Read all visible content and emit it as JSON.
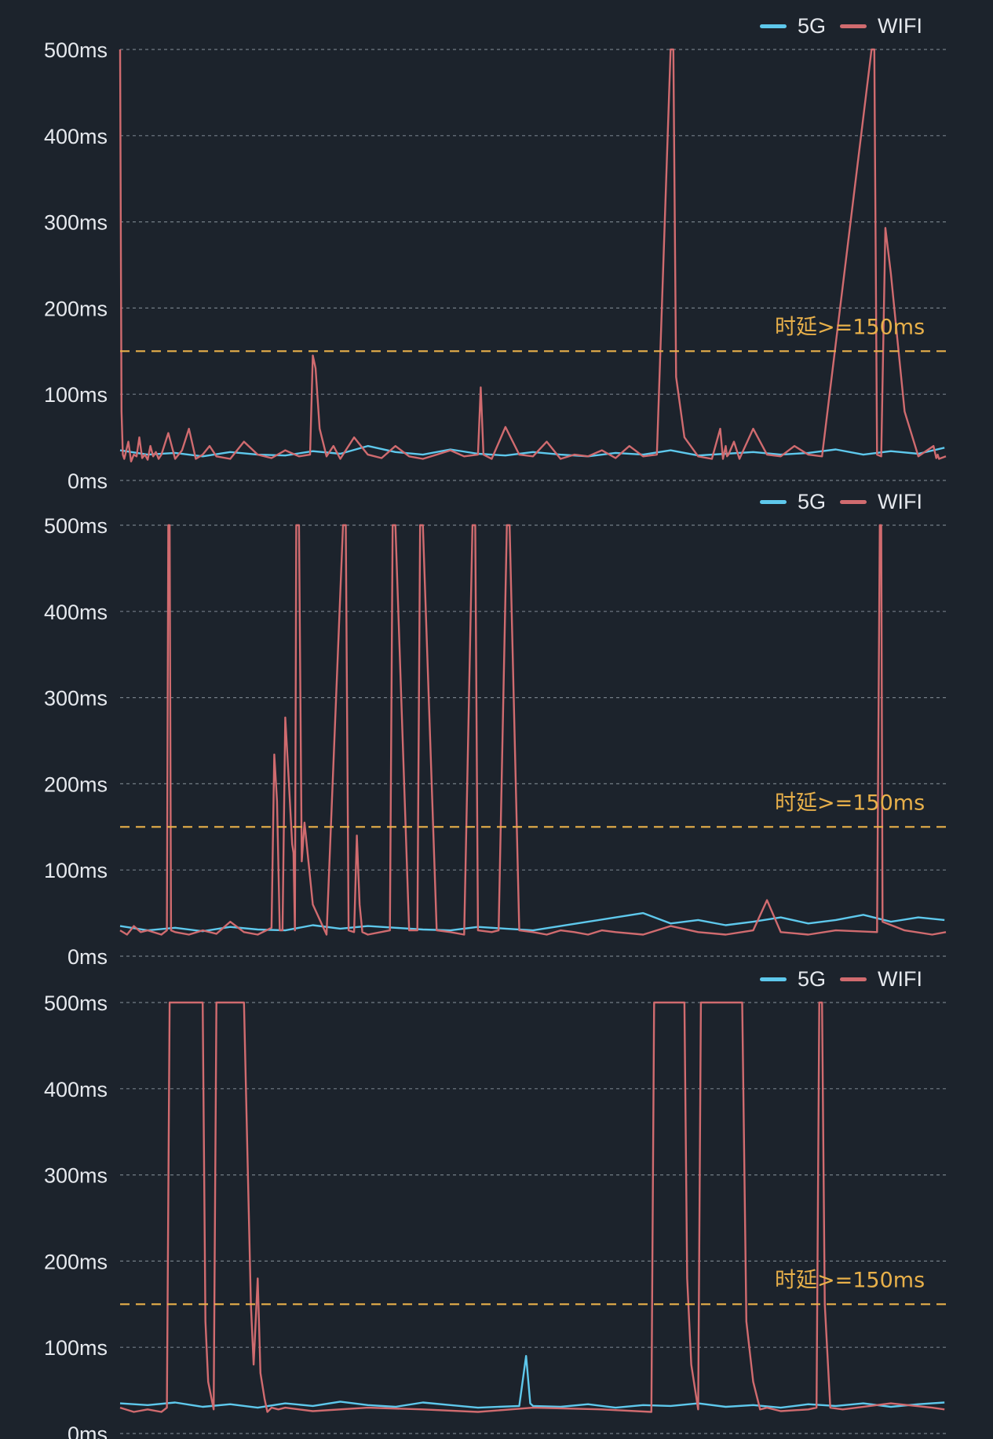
{
  "colors": {
    "background": "#1c232c",
    "series_5g": "#5ec8ec",
    "series_wifi": "#d06b6f",
    "threshold": "#e8b04a",
    "grid": "#8a939e",
    "text": "#e6e9ee"
  },
  "chart_data": [
    {
      "type": "line",
      "ylim": [
        0,
        500
      ],
      "yticks": [
        "0ms",
        "100ms",
        "200ms",
        "300ms",
        "400ms",
        "500ms"
      ],
      "grid": "horizontal dashed",
      "legend": "top-right",
      "threshold": {
        "value": 150,
        "label": "时延>=150ms"
      },
      "series": [
        {
          "name": "5G",
          "x": [
            0,
            20,
            40,
            60,
            80,
            100,
            120,
            140,
            160,
            180,
            200,
            220,
            240,
            260,
            280,
            300,
            320,
            340,
            360,
            380,
            400,
            420,
            440,
            460,
            480,
            500,
            520,
            540,
            560,
            580,
            599
          ],
          "values": [
            35,
            30,
            32,
            28,
            33,
            30,
            29,
            34,
            31,
            40,
            33,
            30,
            36,
            31,
            29,
            33,
            30,
            28,
            32,
            30,
            35,
            29,
            31,
            33,
            30,
            32,
            36,
            30,
            34,
            31,
            38
          ]
        },
        {
          "name": "WIFI",
          "x": [
            0,
            1,
            2,
            3,
            6,
            8,
            10,
            12,
            14,
            16,
            18,
            20,
            22,
            24,
            26,
            28,
            30,
            35,
            40,
            45,
            50,
            55,
            60,
            65,
            70,
            80,
            90,
            100,
            110,
            120,
            130,
            138,
            140,
            142,
            145,
            150,
            155,
            160,
            170,
            180,
            190,
            200,
            210,
            220,
            230,
            240,
            250,
            260,
            262,
            264,
            270,
            280,
            290,
            300,
            310,
            320,
            330,
            340,
            350,
            360,
            370,
            380,
            390,
            400,
            402,
            404,
            410,
            420,
            430,
            436,
            438,
            440,
            441,
            442,
            446,
            450,
            460,
            470,
            480,
            490,
            500,
            510,
            546,
            548,
            550,
            553,
            556,
            560,
            565,
            570,
            580,
            591,
            593,
            594,
            595,
            600
          ],
          "values": [
            500,
            80,
            30,
            25,
            45,
            22,
            30,
            28,
            50,
            26,
            30,
            24,
            40,
            28,
            33,
            25,
            30,
            55,
            25,
            35,
            60,
            25,
            30,
            40,
            28,
            25,
            45,
            30,
            26,
            35,
            28,
            30,
            145,
            130,
            60,
            28,
            40,
            25,
            50,
            30,
            26,
            40,
            28,
            25,
            30,
            35,
            28,
            30,
            108,
            30,
            25,
            62,
            30,
            28,
            45,
            25,
            30,
            28,
            35,
            26,
            40,
            28,
            30,
            500,
            500,
            120,
            50,
            28,
            25,
            60,
            25,
            40,
            28,
            30,
            45,
            25,
            60,
            30,
            28,
            40,
            30,
            28,
            500,
            500,
            30,
            28,
            293,
            240,
            160,
            80,
            28,
            40,
            26,
            30,
            25,
            28
          ]
        }
      ]
    },
    {
      "type": "line",
      "ylim": [
        0,
        500
      ],
      "yticks": [
        "0ms",
        "100ms",
        "200ms",
        "300ms",
        "400ms",
        "500ms"
      ],
      "grid": "horizontal dashed",
      "legend": "top-right",
      "threshold": {
        "value": 150,
        "label": "时延>=150ms"
      },
      "series": [
        {
          "name": "5G",
          "x": [
            0,
            20,
            40,
            60,
            80,
            100,
            120,
            140,
            160,
            180,
            200,
            220,
            240,
            260,
            280,
            300,
            320,
            340,
            360,
            380,
            400,
            420,
            440,
            460,
            480,
            500,
            520,
            540,
            560,
            580,
            599
          ],
          "values": [
            35,
            30,
            33,
            29,
            34,
            31,
            30,
            36,
            32,
            35,
            33,
            31,
            30,
            34,
            32,
            30,
            35,
            40,
            45,
            50,
            38,
            42,
            36,
            40,
            45,
            38,
            42,
            48,
            40,
            45,
            42
          ]
        },
        {
          "name": "WIFI",
          "x": [
            0,
            5,
            10,
            15,
            20,
            30,
            34,
            35,
            36,
            37,
            40,
            50,
            60,
            70,
            80,
            90,
            100,
            110,
            112,
            114,
            116,
            118,
            120,
            122,
            125,
            126,
            127,
            128,
            130,
            132,
            134,
            140,
            150,
            162,
            164,
            166,
            170,
            172,
            174,
            176,
            180,
            196,
            198,
            200,
            210,
            216,
            218,
            220,
            230,
            240,
            250,
            256,
            258,
            260,
            270,
            275,
            281,
            283,
            290,
            300,
            310,
            320,
            330,
            340,
            350,
            360,
            380,
            400,
            420,
            440,
            460,
            470,
            480,
            500,
            520,
            550,
            552,
            553,
            554,
            570,
            590,
            600
          ],
          "values": [
            30,
            25,
            35,
            28,
            30,
            25,
            30,
            500,
            500,
            30,
            28,
            25,
            30,
            26,
            40,
            28,
            25,
            33,
            234,
            180,
            30,
            30,
            277,
            220,
            130,
            120,
            30,
            500,
            500,
            110,
            155,
            60,
            25,
            500,
            500,
            30,
            28,
            140,
            60,
            28,
            25,
            30,
            500,
            500,
            30,
            30,
            500,
            500,
            30,
            28,
            25,
            500,
            500,
            30,
            28,
            30,
            500,
            500,
            30,
            28,
            25,
            30,
            28,
            25,
            30,
            28,
            25,
            35,
            28,
            25,
            30,
            65,
            28,
            25,
            30,
            28,
            500,
            500,
            40,
            30,
            25,
            28
          ]
        }
      ]
    },
    {
      "type": "line",
      "ylim": [
        0,
        500
      ],
      "yticks": [
        "0ms",
        "100ms",
        "200ms",
        "300ms",
        "400ms",
        "500ms"
      ],
      "grid": "horizontal dashed",
      "legend": "top-right",
      "threshold": {
        "value": 150,
        "label": "时延>=150ms"
      },
      "series": [
        {
          "name": "5G",
          "x": [
            0,
            20,
            40,
            60,
            80,
            100,
            120,
            140,
            160,
            180,
            200,
            220,
            240,
            260,
            290,
            295,
            298,
            300,
            320,
            340,
            360,
            380,
            400,
            420,
            440,
            460,
            480,
            500,
            520,
            540,
            560,
            580,
            599
          ],
          "values": [
            35,
            33,
            36,
            31,
            34,
            30,
            35,
            32,
            37,
            33,
            31,
            36,
            33,
            30,
            32,
            90,
            35,
            32,
            31,
            34,
            30,
            33,
            32,
            35,
            31,
            33,
            30,
            34,
            32,
            35,
            31,
            34,
            36
          ]
        },
        {
          "name": "WIFI",
          "x": [
            0,
            10,
            20,
            30,
            34,
            36,
            40,
            55,
            60,
            62,
            64,
            68,
            70,
            72,
            75,
            80,
            90,
            95,
            97,
            100,
            102,
            105,
            107,
            110,
            115,
            120,
            140,
            180,
            220,
            260,
            300,
            350,
            386,
            388,
            400,
            405,
            410,
            412,
            415,
            420,
            422,
            430,
            440,
            445,
            450,
            452,
            455,
            460,
            465,
            470,
            480,
            500,
            506,
            508,
            509,
            510,
            512,
            516,
            525,
            560,
            590,
            599
          ],
          "values": [
            30,
            25,
            28,
            25,
            30,
            500,
            500,
            500,
            500,
            130,
            60,
            28,
            500,
            500,
            500,
            500,
            500,
            150,
            80,
            180,
            70,
            40,
            25,
            30,
            28,
            30,
            26,
            30,
            28,
            25,
            30,
            28,
            25,
            500,
            500,
            500,
            500,
            180,
            80,
            28,
            500,
            500,
            500,
            500,
            500,
            500,
            130,
            60,
            28,
            30,
            26,
            28,
            30,
            500,
            500,
            500,
            150,
            30,
            28,
            35,
            30,
            28
          ]
        }
      ]
    }
  ]
}
